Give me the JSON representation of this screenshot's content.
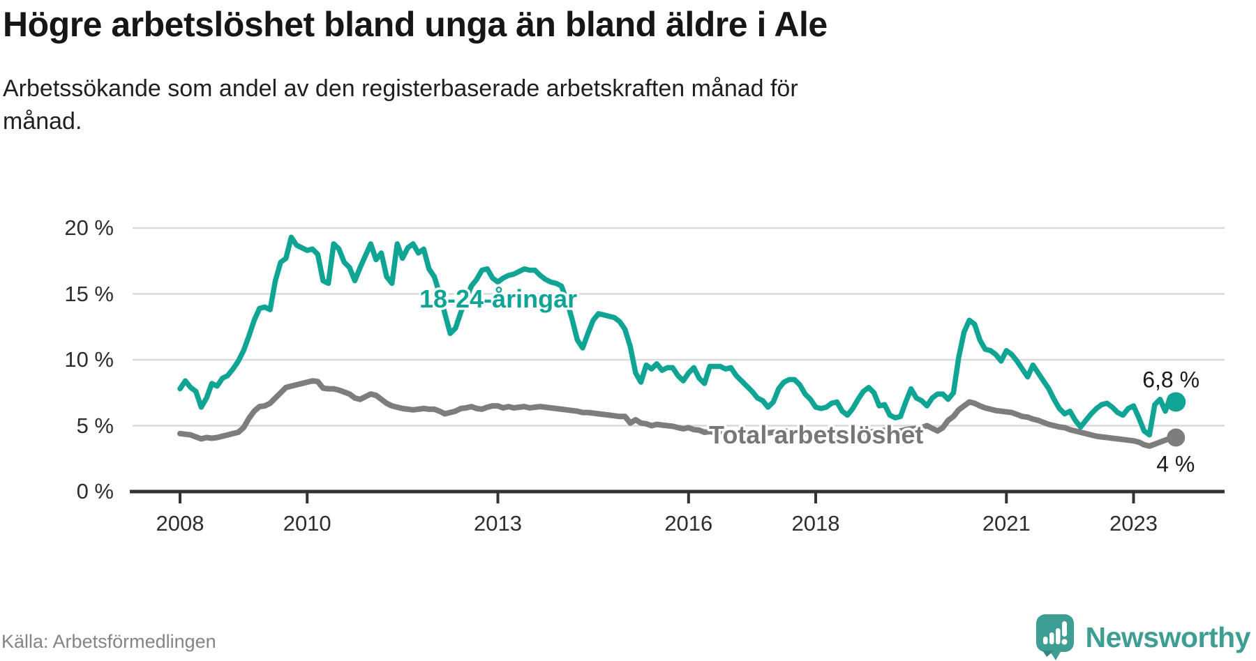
{
  "header": {
    "title": "Högre arbetslöshet bland unga än bland äldre i Ale",
    "subtitle_lines": [
      "Arbetssökande som andel av den registerbaserade arbetskraften månad för",
      "månad."
    ]
  },
  "footer": {
    "source": "Källa: Arbetsförmedlingen",
    "brand": "Newsworthy",
    "brand_color": "#3f9e94"
  },
  "chart_data": {
    "type": "line",
    "title": "Högre arbetslöshet bland unga än bland äldre i Ale",
    "xlabel": "",
    "ylabel": "Arbetssökande som andel av den registerbaserade arbetskraften",
    "unit": "%",
    "grid": "horizontal",
    "ylim": [
      0,
      20.5
    ],
    "start": "2008-01",
    "end": "2023-09",
    "frequency": "monthly",
    "y_ticks": [
      {
        "value": 0,
        "label": "0 %"
      },
      {
        "value": 5,
        "label": "5 %"
      },
      {
        "value": 10,
        "label": "10 %"
      },
      {
        "value": 15,
        "label": "15 %"
      },
      {
        "value": 20,
        "label": "20 %"
      }
    ],
    "x_ticks": [
      {
        "year": 2008,
        "label": "2008"
      },
      {
        "year": 2010,
        "label": "2010"
      },
      {
        "year": 2013,
        "label": "2013"
      },
      {
        "year": 2016,
        "label": "2016"
      },
      {
        "year": 2018,
        "label": "2018"
      },
      {
        "year": 2021,
        "label": "2021"
      },
      {
        "year": 2023,
        "label": "2023"
      }
    ],
    "series": [
      {
        "name": "Total arbetslöshet",
        "color": "#7d7d7d",
        "label_color": "#777777",
        "end_label": "4 %",
        "end_value": 4.0,
        "values": [
          4.4,
          4.35,
          4.3,
          4.15,
          4.0,
          4.1,
          4.05,
          4.1,
          4.2,
          4.3,
          4.4,
          4.5,
          4.85,
          5.55,
          6.1,
          6.45,
          6.5,
          6.7,
          7.1,
          7.5,
          7.9,
          8.0,
          8.1,
          8.2,
          8.3,
          8.4,
          8.35,
          7.85,
          7.8,
          7.8,
          7.7,
          7.55,
          7.4,
          7.1,
          7.0,
          7.2,
          7.4,
          7.3,
          7.0,
          6.7,
          6.5,
          6.4,
          6.3,
          6.25,
          6.2,
          6.25,
          6.3,
          6.25,
          6.25,
          6.1,
          5.9,
          6.0,
          6.1,
          6.3,
          6.35,
          6.45,
          6.3,
          6.25,
          6.4,
          6.5,
          6.5,
          6.35,
          6.45,
          6.35,
          6.4,
          6.45,
          6.35,
          6.4,
          6.45,
          6.4,
          6.35,
          6.3,
          6.25,
          6.2,
          6.15,
          6.1,
          6.0,
          6.0,
          5.95,
          5.9,
          5.85,
          5.8,
          5.75,
          5.7,
          5.7,
          5.2,
          5.45,
          5.2,
          5.15,
          5.0,
          5.1,
          5.05,
          5.0,
          4.95,
          4.85,
          4.76,
          4.85,
          4.7,
          4.66,
          4.5,
          4.55,
          4.5,
          4.55,
          4.6,
          4.5,
          4.45,
          4.4,
          4.45,
          4.5,
          4.45,
          4.4,
          4.45,
          4.5,
          4.55,
          4.6,
          4.55,
          4.5,
          4.45,
          4.4,
          4.45,
          4.4,
          4.35,
          4.3,
          4.35,
          4.3,
          4.25,
          4.3,
          4.35,
          4.4,
          4.45,
          4.5,
          4.55,
          4.6,
          4.65,
          4.6,
          4.55,
          4.6,
          4.7,
          4.75,
          4.8,
          4.85,
          5.0,
          4.8,
          4.6,
          4.85,
          5.4,
          5.7,
          6.2,
          6.5,
          6.8,
          6.7,
          6.5,
          6.35,
          6.25,
          6.15,
          6.1,
          6.05,
          6.0,
          5.85,
          5.7,
          5.65,
          5.5,
          5.4,
          5.25,
          5.1,
          5.0,
          4.9,
          4.85,
          4.7,
          4.6,
          4.5,
          4.4,
          4.3,
          4.2,
          4.15,
          4.1,
          4.05,
          4.0,
          3.95,
          3.9,
          3.85,
          3.75,
          3.55,
          3.45,
          3.6,
          3.75,
          3.9,
          4.05,
          4.1
        ]
      },
      {
        "name": "18-24-åringar",
        "color": "#10a494",
        "label_color": "#10a494",
        "end_label": "6,8 %",
        "end_value": 6.8,
        "values": [
          7.8,
          8.4,
          7.9,
          7.6,
          6.4,
          7.1,
          8.2,
          8.0,
          8.6,
          8.8,
          9.3,
          9.9,
          10.7,
          11.8,
          13.0,
          13.9,
          14.0,
          13.8,
          16.0,
          17.4,
          17.7,
          19.3,
          18.7,
          18.5,
          18.3,
          18.4,
          18.0,
          16.0,
          15.8,
          18.8,
          18.4,
          17.4,
          17.0,
          16.0,
          17.0,
          17.9,
          18.8,
          17.6,
          18.1,
          16.3,
          15.8,
          18.8,
          17.7,
          18.5,
          18.8,
          18.1,
          18.4,
          16.9,
          16.3,
          15.0,
          13.5,
          12.0,
          12.4,
          13.6,
          14.6,
          15.6,
          16.1,
          16.8,
          16.9,
          16.2,
          15.9,
          16.2,
          16.4,
          16.5,
          16.7,
          16.9,
          16.8,
          16.8,
          16.4,
          16.1,
          15.9,
          15.8,
          15.6,
          14.5,
          13.1,
          11.5,
          10.9,
          12.0,
          13.0,
          13.5,
          13.4,
          13.3,
          13.2,
          12.9,
          12.3,
          11.0,
          9.0,
          8.3,
          9.6,
          9.3,
          9.7,
          9.2,
          9.4,
          9.4,
          8.8,
          8.4,
          9.0,
          9.4,
          8.6,
          8.2,
          9.5,
          9.5,
          9.5,
          9.3,
          9.4,
          8.8,
          8.4,
          8.0,
          7.6,
          7.1,
          6.9,
          6.4,
          6.8,
          7.8,
          8.3,
          8.5,
          8.5,
          8.1,
          7.4,
          7.0,
          6.4,
          6.3,
          6.4,
          6.7,
          6.8,
          6.1,
          5.8,
          6.3,
          7.0,
          7.6,
          7.9,
          7.5,
          6.5,
          6.6,
          5.8,
          5.6,
          5.7,
          6.8,
          7.8,
          7.1,
          6.9,
          6.5,
          7.1,
          7.4,
          7.4,
          7.0,
          7.5,
          10.2,
          12.1,
          13.0,
          12.7,
          11.5,
          10.8,
          10.7,
          10.4,
          9.9,
          10.7,
          10.4,
          9.9,
          9.3,
          8.7,
          9.6,
          9.0,
          8.4,
          7.8,
          7.0,
          6.3,
          5.9,
          6.1,
          5.4,
          4.9,
          5.4,
          5.9,
          6.3,
          6.6,
          6.7,
          6.4,
          6.0,
          5.8,
          6.3,
          6.5,
          5.6,
          4.6,
          4.3,
          6.6,
          7.0,
          6.1,
          7.2,
          6.8
        ]
      }
    ]
  }
}
